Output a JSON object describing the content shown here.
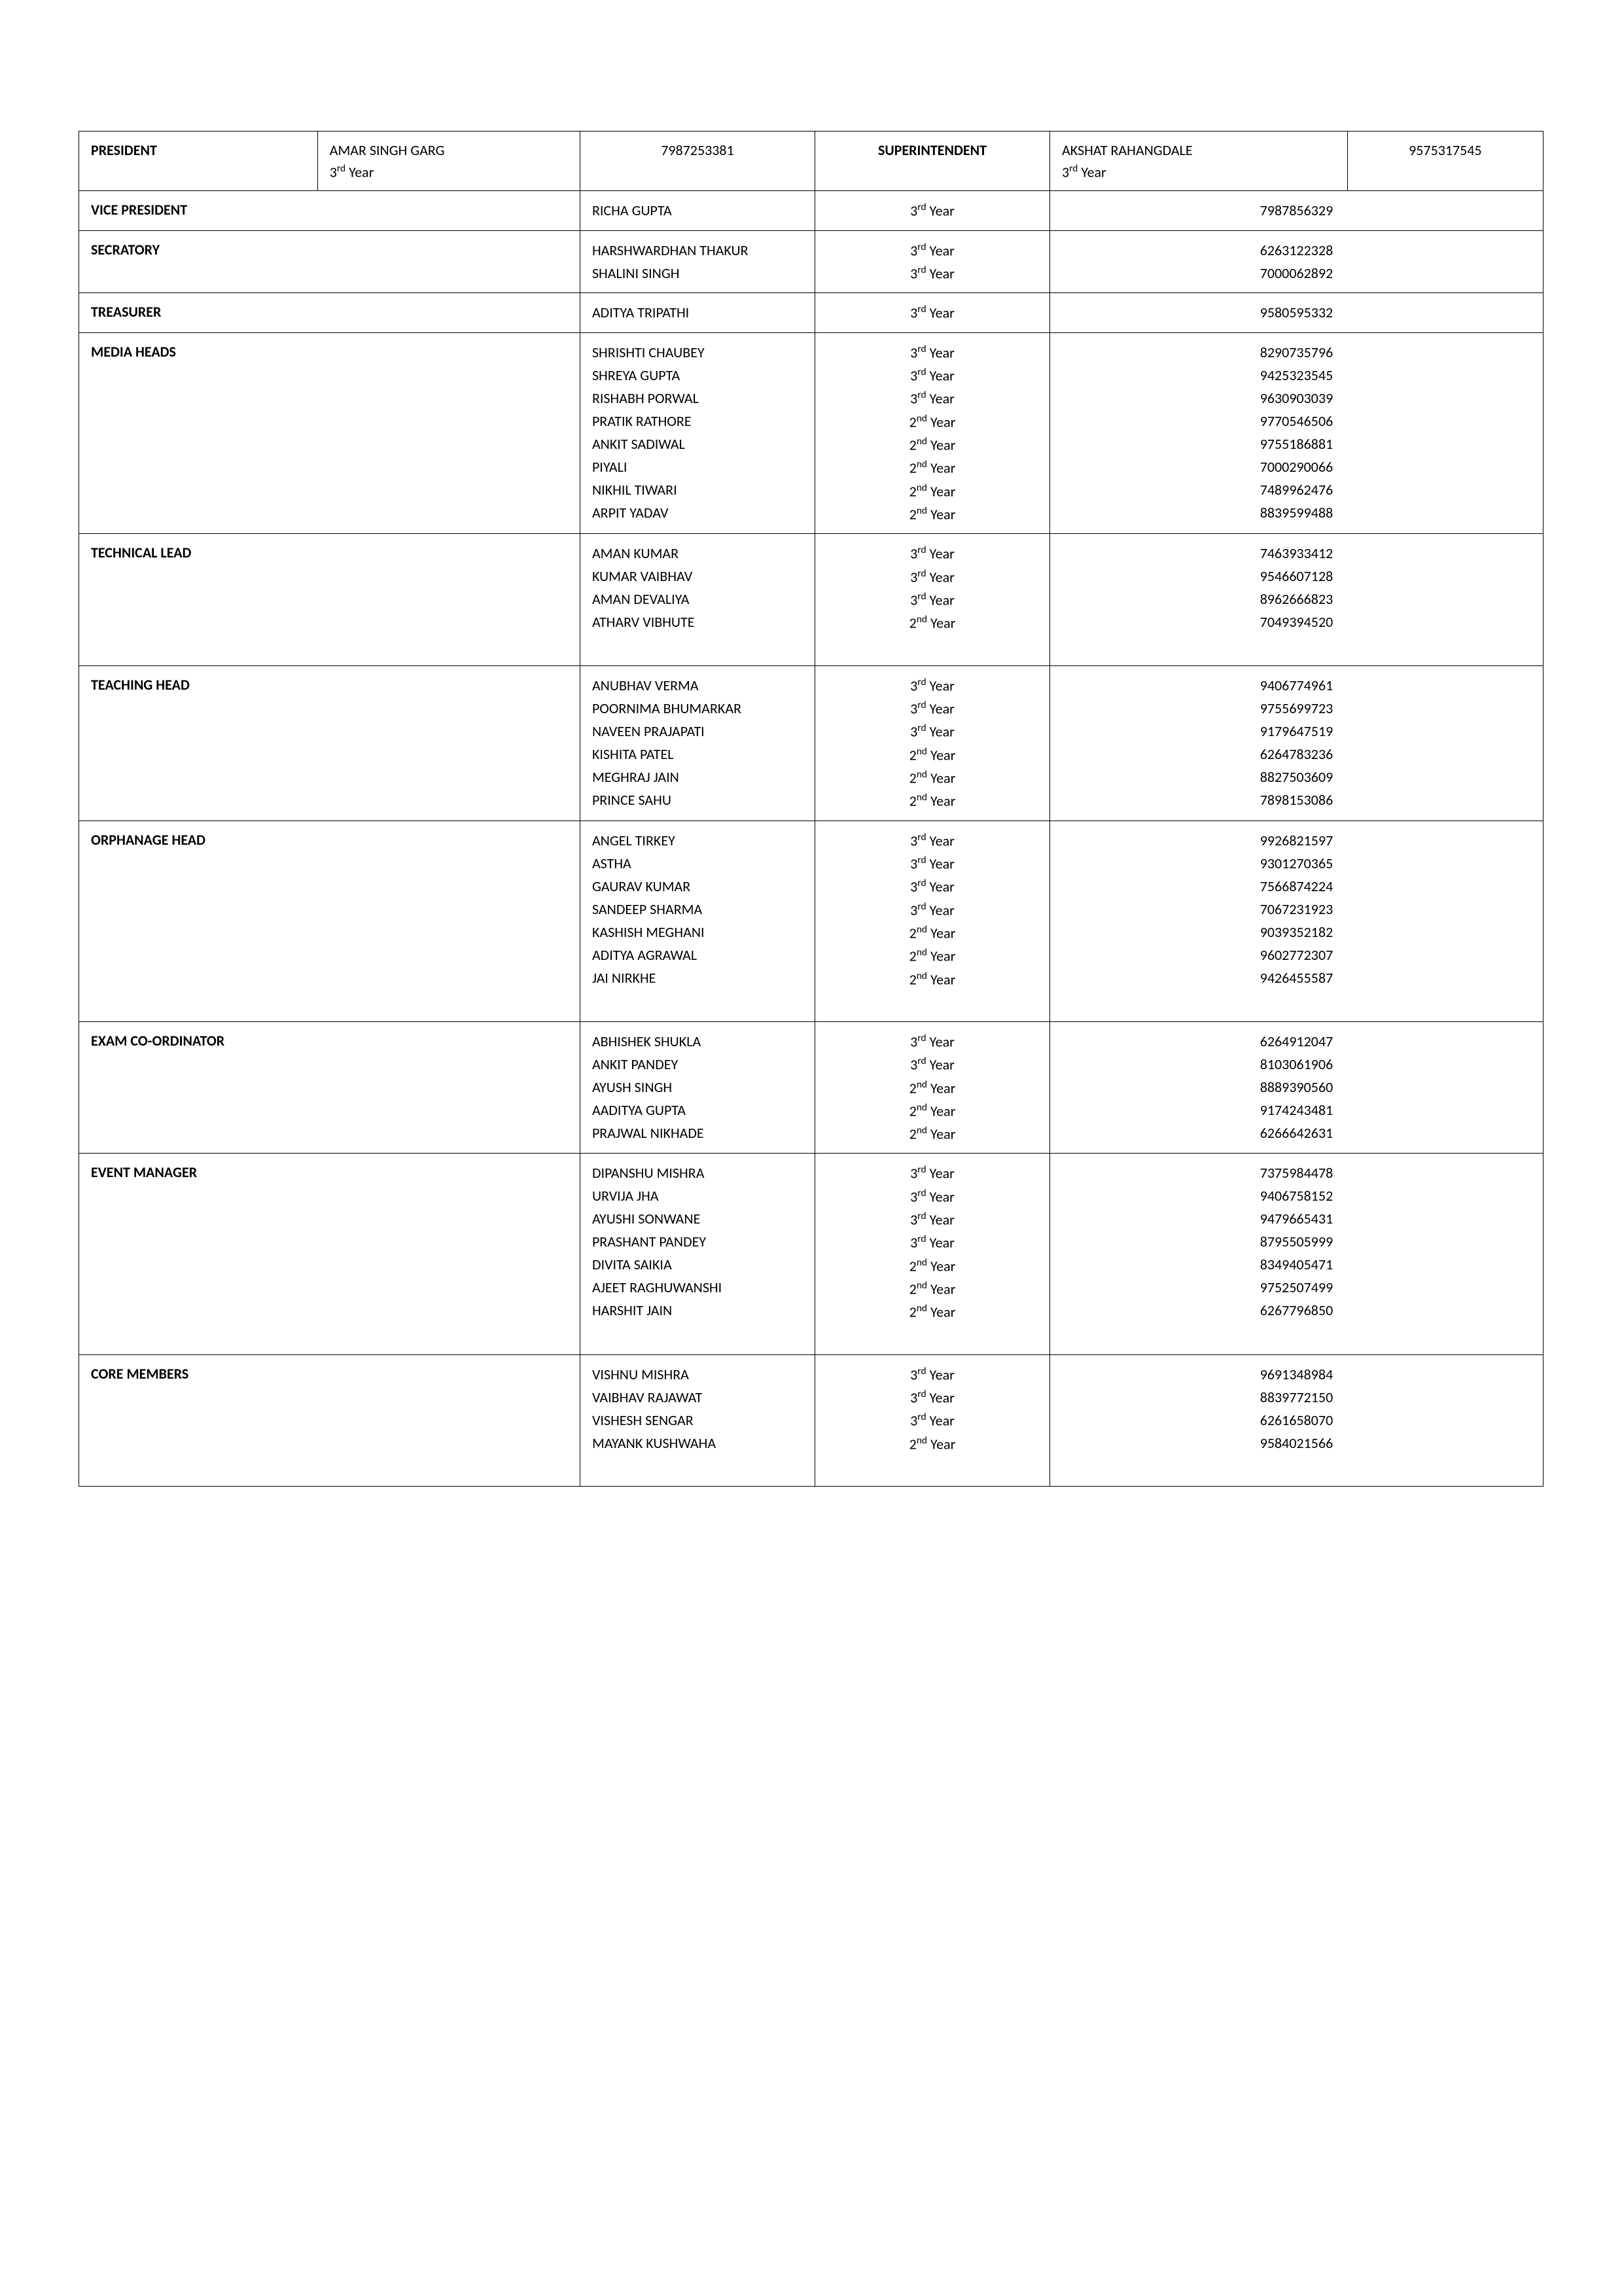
{
  "top_row": {
    "president_label": "PRESIDENT",
    "president_name": "AMAR SINGH GARG",
    "president_year_num": "3",
    "president_year_sup": "rd",
    "president_year_suffix": " Year",
    "president_phone": "7987253381",
    "superintendent_label": "SUPERINTENDENT",
    "superintendent_name": "AKSHAT RAHANGDALE",
    "superintendent_year_num": "3",
    "superintendent_year_sup": "rd",
    "superintendent_year_suffix": " Year",
    "superintendent_phone": "9575317545"
  },
  "rows": [
    {
      "role": "VICE PRESIDENT",
      "members": [
        {
          "name": "RICHA GUPTA",
          "year_num": "3",
          "year_sup": "rd",
          "phone": "7987856329"
        }
      ]
    },
    {
      "role": "SECRATORY",
      "members": [
        {
          "name": "HARSHWARDHAN THAKUR",
          "year_num": "3",
          "year_sup": "rd",
          "phone": "6263122328"
        },
        {
          "name": "SHALINI SINGH",
          "year_num": "3",
          "year_sup": "rd",
          "phone": "7000062892"
        }
      ]
    },
    {
      "role": "TREASURER",
      "members": [
        {
          "name": "ADITYA TRIPATHI",
          "year_num": "3",
          "year_sup": "rd",
          "phone": "9580595332"
        }
      ]
    },
    {
      "role": "MEDIA HEADS",
      "members": [
        {
          "name": "SHRISHTI CHAUBEY",
          "year_num": "3",
          "year_sup": "rd",
          "phone": "8290735796"
        },
        {
          "name": "SHREYA GUPTA",
          "year_num": "3",
          "year_sup": "rd",
          "phone": "9425323545"
        },
        {
          "name": "RISHABH PORWAL",
          "year_num": "3",
          "year_sup": "rd",
          "phone": "9630903039"
        },
        {
          "name": "PRATIK RATHORE",
          "year_num": "2",
          "year_sup": "nd",
          "phone": "9770546506"
        },
        {
          "name": "ANKIT SADIWAL",
          "year_num": "2",
          "year_sup": "nd",
          "phone": "9755186881"
        },
        {
          "name": "PIYALI",
          "year_num": "2",
          "year_sup": "nd",
          "phone": "7000290066"
        },
        {
          "name": "NIKHIL TIWARI",
          "year_num": "2",
          "year_sup": "nd",
          "phone": "7489962476"
        },
        {
          "name": "ARPIT YADAV",
          "year_num": "2",
          "year_sup": "nd",
          "phone": "8839599488"
        }
      ]
    },
    {
      "role": "TECHNICAL LEAD",
      "members": [
        {
          "name": "AMAN KUMAR",
          "year_num": "3",
          "year_sup": "rd",
          "phone": "7463933412"
        },
        {
          "name": "KUMAR VAIBHAV",
          "year_num": "3",
          "year_sup": "rd",
          "phone": "9546607128"
        },
        {
          "name": "AMAN DEVALIYA",
          "year_num": "3",
          "year_sup": "rd",
          "phone": "8962666823"
        },
        {
          "name": "ATHARV VIBHUTE",
          "year_num": "2",
          "year_sup": "nd",
          "phone": "7049394520"
        }
      ],
      "trailing_blank": true
    },
    {
      "role": "TEACHING HEAD",
      "members": [
        {
          "name": "ANUBHAV VERMA",
          "year_num": "3",
          "year_sup": "rd",
          "phone": "9406774961"
        },
        {
          "name": "POORNIMA BHUMARKAR",
          "year_num": "3",
          "year_sup": "rd",
          "phone": "9755699723"
        },
        {
          "name": "NAVEEN PRAJAPATI",
          "year_num": "3",
          "year_sup": "rd",
          "phone": "9179647519"
        },
        {
          "name": "KISHITA PATEL",
          "year_num": "2",
          "year_sup": "nd",
          "phone": "6264783236"
        },
        {
          "name": "MEGHRAJ JAIN",
          "year_num": "2",
          "year_sup": "nd",
          "phone": "8827503609"
        },
        {
          "name": "PRINCE SAHU",
          "year_num": "2",
          "year_sup": "nd",
          "phone": "7898153086"
        }
      ]
    },
    {
      "role": "ORPHANAGE HEAD",
      "members": [
        {
          "name": "ANGEL TIRKEY",
          "year_num": "3",
          "year_sup": "rd",
          "phone": "9926821597"
        },
        {
          "name": "ASTHA",
          "year_num": "3",
          "year_sup": "rd",
          "phone": "9301270365"
        },
        {
          "name": "GAURAV KUMAR",
          "year_num": "3",
          "year_sup": "rd",
          "phone": "7566874224"
        },
        {
          "name": "SANDEEP SHARMA",
          "year_num": "3",
          "year_sup": "rd",
          "phone": "7067231923"
        },
        {
          "name": "KASHISH MEGHANI",
          "year_num": "2",
          "year_sup": "nd",
          "phone": "9039352182"
        },
        {
          "name": "ADITYA AGRAWAL",
          "year_num": "2",
          "year_sup": "nd",
          "phone": "9602772307"
        },
        {
          "name": "JAI NIRKHE",
          "year_num": "2",
          "year_sup": "nd",
          "phone": "9426455587"
        }
      ],
      "trailing_blank": true
    },
    {
      "role": "EXAM CO-ORDINATOR",
      "members": [
        {
          "name": "ABHISHEK SHUKLA",
          "year_num": "3",
          "year_sup": "rd",
          "phone": "6264912047"
        },
        {
          "name": "ANKIT PANDEY",
          "year_num": "3",
          "year_sup": "rd",
          "phone": "8103061906"
        },
        {
          "name": "AYUSH SINGH",
          "year_num": "2",
          "year_sup": "nd",
          "phone": "8889390560"
        },
        {
          "name": "AADITYA GUPTA",
          "year_num": "2",
          "year_sup": "nd",
          "phone": "9174243481"
        },
        {
          "name": "PRAJWAL NIKHADE",
          "year_num": "2",
          "year_sup": "nd",
          "phone": "6266642631"
        }
      ]
    },
    {
      "role": "EVENT MANAGER",
      "members": [
        {
          "name": "DIPANSHU MISHRA",
          "year_num": "3",
          "year_sup": "rd",
          "phone": "7375984478"
        },
        {
          "name": "URVIJA JHA",
          "year_num": "3",
          "year_sup": "rd",
          "phone": "9406758152"
        },
        {
          "name": "AYUSHI SONWANE",
          "year_num": "3",
          "year_sup": "rd",
          "phone": "9479665431"
        },
        {
          "name": "PRASHANT PANDEY",
          "year_num": "3",
          "year_sup": "rd",
          "phone": "8795505999"
        },
        {
          "name": "DIVITA SAIKIA",
          "year_num": "2",
          "year_sup": "nd",
          "phone": "8349405471"
        },
        {
          "name": "AJEET RAGHUWANSHI",
          "year_num": "2",
          "year_sup": "nd",
          "phone": "9752507499"
        },
        {
          "name": "HARSHIT JAIN",
          "year_num": "2",
          "year_sup": "nd",
          "phone": "6267796850"
        }
      ],
      "trailing_blank": true
    },
    {
      "role": "CORE MEMBERS",
      "members": [
        {
          "name": "VISHNU MISHRA",
          "year_num": "3",
          "year_sup": "rd",
          "phone": "9691348984"
        },
        {
          "name": "VAIBHAV RAJAWAT",
          "year_num": "3",
          "year_sup": "rd",
          "phone": "8839772150"
        },
        {
          "name": "VISHESH SENGAR",
          "year_num": "3",
          "year_sup": "rd",
          "phone": "6261658070"
        },
        {
          "name": "MAYANK KUSHWAHA",
          "year_num": "2",
          "year_sup": "nd",
          "phone": "9584021566"
        }
      ],
      "trailing_blank": true
    }
  ],
  "year_suffix": " Year"
}
